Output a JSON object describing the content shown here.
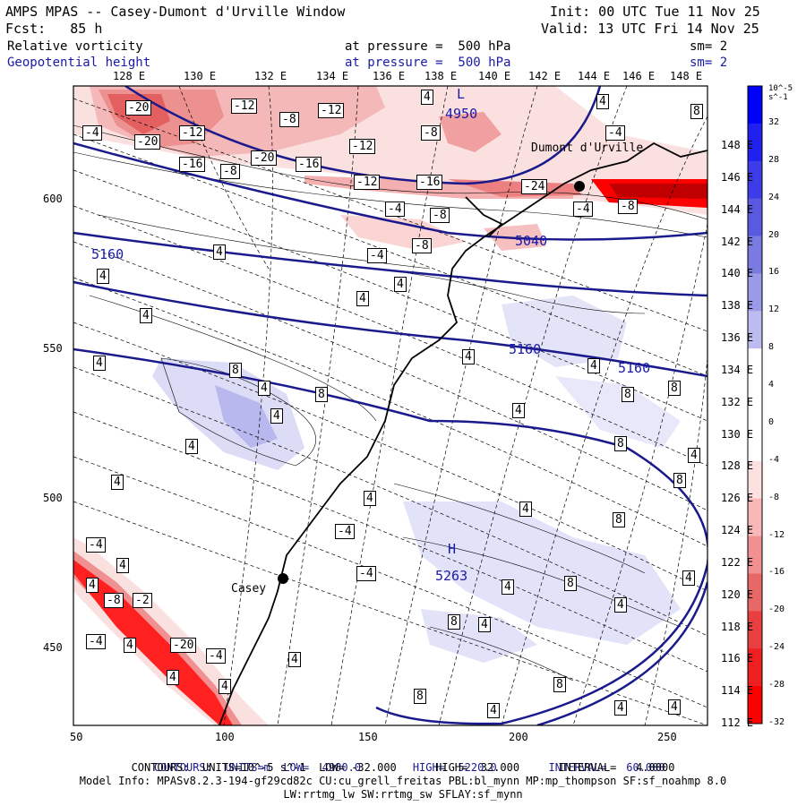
{
  "header": {
    "title": "AMPS MPAS -- Casey-Dumont d'Urville Window",
    "init": "Init: 00 UTC Tue 11 Nov 25",
    "fcst": "Fcst:   85 h",
    "valid": "Valid: 13 UTC Fri 14 Nov 25",
    "field1_name": "Relative vorticity",
    "field1_level": "at pressure =  500 hPa",
    "field1_sm": "sm= 2",
    "field2_name": "Geopotential height",
    "field2_level": "at pressure =  500 hPa",
    "field2_sm": "sm= 2"
  },
  "lon_labels_top": [
    "128 E",
    "130 E",
    "132 E",
    "134 E",
    "136 E",
    "138 E",
    "140 E",
    "142 E",
    "144 E",
    "146 E",
    "148 E"
  ],
  "lat_labels_right": [
    "148 E",
    "146 E",
    "144 E",
    "142 E",
    "140 E",
    "138 E",
    "136 E",
    "134 E",
    "132 E",
    "130 E",
    "128 E",
    "126 E",
    "124 E",
    "122 E",
    "120 E",
    "118 E",
    "116 E",
    "114 E",
    "112 E"
  ],
  "x_axis_ticks": [
    "50",
    "100",
    "150",
    "200",
    "250"
  ],
  "y_axis_ticks": [
    "600",
    "550",
    "500",
    "450"
  ],
  "colorbar": {
    "units": "10^-5 s^-1",
    "labels": [
      "32",
      "28",
      "24",
      "20",
      "16",
      "12",
      "8",
      "4",
      "0",
      "-4",
      "-8",
      "-12",
      "-16",
      "-20",
      "-24",
      "-28",
      "-32"
    ],
    "colors": [
      "#0000ff",
      "#2020f0",
      "#3c3ce8",
      "#5a5ae0",
      "#7a7ae0",
      "#9a9ae8",
      "#bcbcf0",
      "#ffffff",
      "#ffffff",
      "#ffffff",
      "#fde0e0",
      "#f8b8b8",
      "#f09090",
      "#e86868",
      "#e84040",
      "#f02020",
      "#ff0000"
    ]
  },
  "map_labels": {
    "station1": "Dumont d'Urville",
    "station2": "Casey",
    "h_contours": [
      "4950",
      "5160",
      "5040",
      "5160",
      "5160"
    ],
    "high_label": "H",
    "high_value": "5263",
    "low_label": "L"
  },
  "vort_boxes": [
    "-20",
    "-12",
    "-8",
    "-12",
    "-4",
    "-20",
    "-12",
    "-12",
    "-16",
    "-8",
    "-20",
    "-16",
    "-12",
    "-16",
    "-8",
    "-24",
    "-4",
    "-8",
    "-4",
    "-8",
    "-4",
    "-8",
    "-4",
    "4",
    "4",
    "4",
    "4",
    "4",
    "4",
    "8",
    "4",
    "8",
    "4",
    "4",
    "4",
    "8",
    "4",
    "4",
    "8",
    "8",
    "4",
    "-4",
    "-4",
    "4",
    "4",
    "8",
    "8",
    "4",
    "4",
    "4",
    "4",
    "8",
    "4",
    "-4",
    "4",
    "-8",
    "-2",
    "-4",
    "4",
    "-20",
    "-4",
    "4",
    "4",
    "4",
    "8",
    "8",
    "4",
    "8",
    "4",
    "4",
    "4",
    "4",
    "4",
    "8"
  ],
  "footer": {
    "line1_a": "CONTOURS:  UNITS=m  LOW=  4980.0",
    "line1_b": "HIGH=  5220.0",
    "line1_c": "INTERVAL=   60.000",
    "line2": "CONTOURS:  UNITS=10^-5 s^-1  LOW= -32.000      HIGH=  32.000      INTERVAL=   4.0000",
    "line3": "Model Info: MPASv8.2.3-194-gf29cd82c CU:cu_grell_freitas PBL:bl_mynn MP:mp_thompson SF:sf_noahmp 8.0",
    "line4": "LW:rrtmg_lw SW:rrtmg_sw SFLAY:sf_mynn"
  }
}
